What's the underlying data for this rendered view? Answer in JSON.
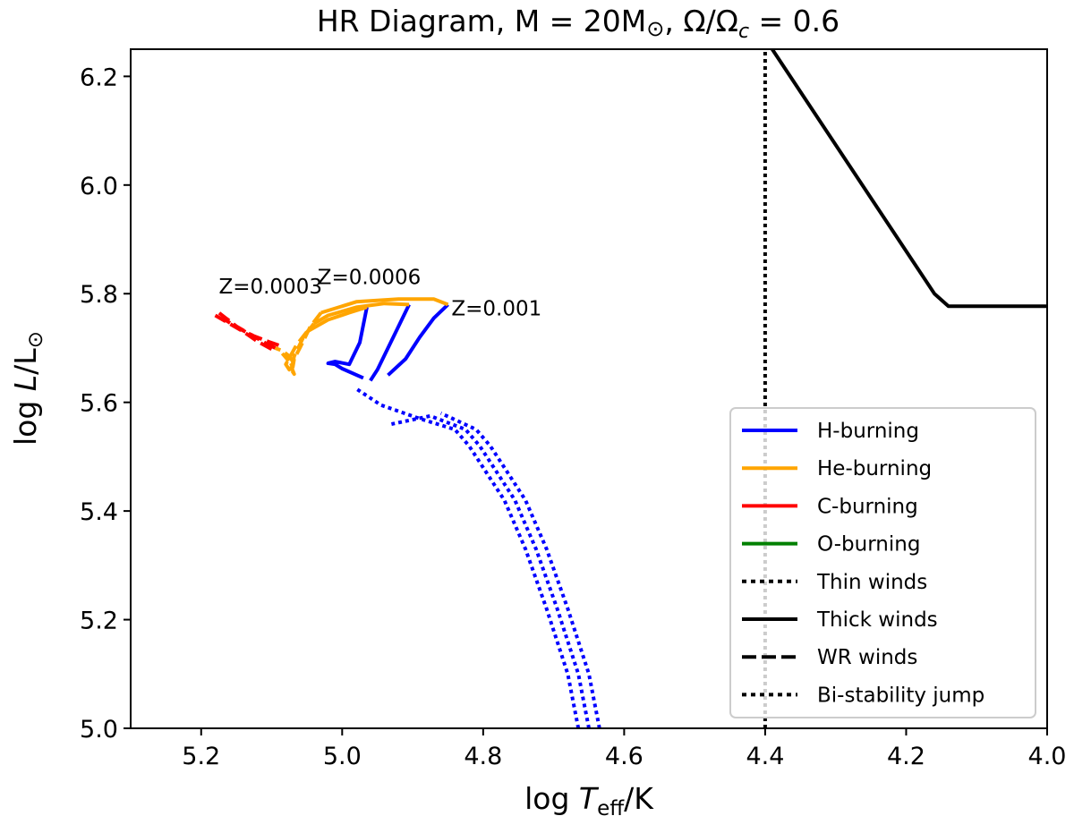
{
  "chart_data": {
    "type": "line",
    "title": "HR Diagram, M = 20M⊙, Ω/Ωc = 0.6",
    "title_parts": {
      "main": "HR Diagram, M = 20M",
      "sun": "⊙",
      "sep": ", Ω/Ω",
      "sub": "c",
      "tail": " = 0.6"
    },
    "xlabel": "log Teff/K",
    "xlabel_parts": {
      "a": "log ",
      "T": "T",
      "sub": "eff",
      "b": "/K"
    },
    "ylabel": "log L/L⊙",
    "ylabel_parts": {
      "a": "log ",
      "L": "L",
      "b": "/L",
      "sun": "⊙"
    },
    "xlim": [
      5.3,
      4.0
    ],
    "ylim": [
      5.0,
      6.25
    ],
    "xticks": [
      5.2,
      5.0,
      4.8,
      4.6,
      4.4,
      4.2,
      4.0
    ],
    "xtick_labels": [
      "5.2",
      "5.0",
      "4.8",
      "4.6",
      "4.4",
      "4.2",
      "4.0"
    ],
    "yticks": [
      5.0,
      5.2,
      5.4,
      5.6,
      5.8,
      6.0,
      6.2
    ],
    "ytick_labels": [
      "5.0",
      "5.2",
      "5.4",
      "5.6",
      "5.8",
      "6.0",
      "6.2"
    ],
    "colors": {
      "h": "#0000ff",
      "he": "#ffa500",
      "c": "#ff0000",
      "o": "#008000",
      "k": "#000000"
    },
    "annotations": [
      {
        "text": "Z=0.0003",
        "x": 5.175,
        "y": 5.8
      },
      {
        "text": "Z=0.0006",
        "x": 5.035,
        "y": 5.818
      },
      {
        "text": "Z=0.001",
        "x": 4.845,
        "y": 5.76
      }
    ],
    "series": [
      {
        "name": "Z=0.001 H-burning thin winds",
        "color": "h",
        "style": "dotted",
        "x": [
          4.635,
          4.65,
          4.68,
          4.71,
          4.74,
          4.77,
          4.79,
          4.81,
          4.86
        ],
        "y": [
          5.0,
          5.1,
          5.22,
          5.33,
          5.42,
          5.48,
          5.52,
          5.55,
          5.58
        ]
      },
      {
        "name": "Z=0.0006 H-burning thin winds",
        "color": "h",
        "style": "dotted",
        "x": [
          4.65,
          4.665,
          4.695,
          4.725,
          4.755,
          4.785,
          4.805,
          4.825,
          4.875,
          4.93
        ],
        "y": [
          5.0,
          5.1,
          5.22,
          5.33,
          5.42,
          5.48,
          5.52,
          5.55,
          5.575,
          5.56
        ]
      },
      {
        "name": "Z=0.0003 H-burning thin winds",
        "color": "h",
        "style": "dotted",
        "x": [
          4.665,
          4.68,
          4.71,
          4.74,
          4.77,
          4.8,
          4.82,
          4.84,
          4.89,
          4.945,
          4.98
        ],
        "y": [
          5.0,
          5.1,
          5.22,
          5.33,
          5.42,
          5.48,
          5.52,
          5.55,
          5.57,
          5.595,
          5.625
        ]
      },
      {
        "name": "Z=0.0003 H-burning",
        "color": "h",
        "style": "solid",
        "x": [
          4.97,
          5.0,
          5.01,
          5.02,
          5.01,
          4.99,
          4.975,
          4.965
        ],
        "y": [
          5.645,
          5.662,
          5.67,
          5.672,
          5.675,
          5.67,
          5.71,
          5.775
        ]
      },
      {
        "name": "Z=0.0006 H-burning",
        "color": "h",
        "style": "solid",
        "x": [
          4.96,
          4.95,
          4.935,
          4.92,
          4.905
        ],
        "y": [
          5.64,
          5.66,
          5.7,
          5.74,
          5.78
        ]
      },
      {
        "name": "Z=0.001 H-burning",
        "color": "h",
        "style": "solid",
        "x": [
          4.935,
          4.91,
          4.89,
          4.87,
          4.85
        ],
        "y": [
          5.65,
          5.68,
          5.72,
          5.755,
          5.78
        ]
      },
      {
        "name": "Z=0.001 He-burning",
        "color": "he",
        "style": "solid",
        "x": [
          4.85,
          4.87,
          4.92,
          4.98,
          5.03
        ],
        "y": [
          5.78,
          5.79,
          5.79,
          5.785,
          5.765
        ]
      },
      {
        "name": "Z=0.0006 He-burning",
        "color": "he",
        "style": "solid",
        "x": [
          4.905,
          4.94,
          4.98,
          5.02,
          5.04
        ],
        "y": [
          5.78,
          5.782,
          5.775,
          5.76,
          5.745
        ]
      },
      {
        "name": "Z=0.0003 He-burning",
        "color": "he",
        "style": "solid",
        "x": [
          4.965,
          4.99,
          5.02,
          5.05
        ],
        "y": [
          5.775,
          5.765,
          5.752,
          5.73
        ]
      },
      {
        "name": "Z=0.0003 He-burning WR",
        "color": "he",
        "style": "dashed",
        "x": [
          5.05,
          5.065,
          5.08,
          5.075,
          5.07,
          5.075,
          5.085,
          5.095
        ],
        "y": [
          5.73,
          5.705,
          5.67,
          5.66,
          5.675,
          5.685,
          5.695,
          5.7
        ]
      },
      {
        "name": "Z=0.0006 He-burning WR",
        "color": "he",
        "style": "dashed",
        "x": [
          5.04,
          5.055,
          5.068,
          5.072,
          5.068,
          5.075,
          5.085
        ],
        "y": [
          5.745,
          5.72,
          5.685,
          5.66,
          5.652,
          5.675,
          5.69
        ]
      },
      {
        "name": "Z=0.001 He-burning WR",
        "color": "he",
        "style": "dashed",
        "x": [
          5.03,
          5.045,
          5.06,
          5.068,
          5.07,
          5.08
        ],
        "y": [
          5.765,
          5.74,
          5.7,
          5.68,
          5.665,
          5.688
        ]
      },
      {
        "name": "C-burning WR 1",
        "color": "c",
        "style": "dashed",
        "x": [
          5.095,
          5.11,
          5.13,
          5.15,
          5.175
        ],
        "y": [
          5.7,
          5.71,
          5.725,
          5.74,
          5.765
        ]
      },
      {
        "name": "C-burning WR 2",
        "color": "c",
        "style": "dashed",
        "x": [
          5.09,
          5.105,
          5.125,
          5.145,
          5.17
        ],
        "y": [
          5.705,
          5.712,
          5.722,
          5.735,
          5.755
        ]
      },
      {
        "name": "C-burning WR 3",
        "color": "c",
        "style": "dashed",
        "x": [
          5.1,
          5.12,
          5.14,
          5.16,
          5.18
        ],
        "y": [
          5.698,
          5.712,
          5.73,
          5.745,
          5.76
        ]
      },
      {
        "name": "Bi-stability jump",
        "color": "k",
        "style": "dotted",
        "x": [
          4.4,
          4.4
        ],
        "y": [
          5.0,
          6.25
        ]
      },
      {
        "name": "Thick winds boundary",
        "color": "k",
        "style": "solid",
        "x": [
          4.39,
          4.16,
          4.14,
          4.0
        ],
        "y": [
          6.25,
          5.8,
          5.777,
          5.777
        ]
      }
    ],
    "legend": {
      "position": "lower-right",
      "entries": [
        {
          "label": "H-burning",
          "color": "h",
          "style": "solid"
        },
        {
          "label": "He-burning",
          "color": "he",
          "style": "solid"
        },
        {
          "label": "C-burning",
          "color": "c",
          "style": "solid"
        },
        {
          "label": "O-burning",
          "color": "o",
          "style": "solid"
        },
        {
          "label": "Thin winds",
          "color": "k",
          "style": "dotted"
        },
        {
          "label": "Thick winds",
          "color": "k",
          "style": "solid"
        },
        {
          "label": "WR winds",
          "color": "k",
          "style": "dashed"
        },
        {
          "label": "Bi-stability jump",
          "color": "k",
          "style": "dotted"
        }
      ]
    }
  }
}
